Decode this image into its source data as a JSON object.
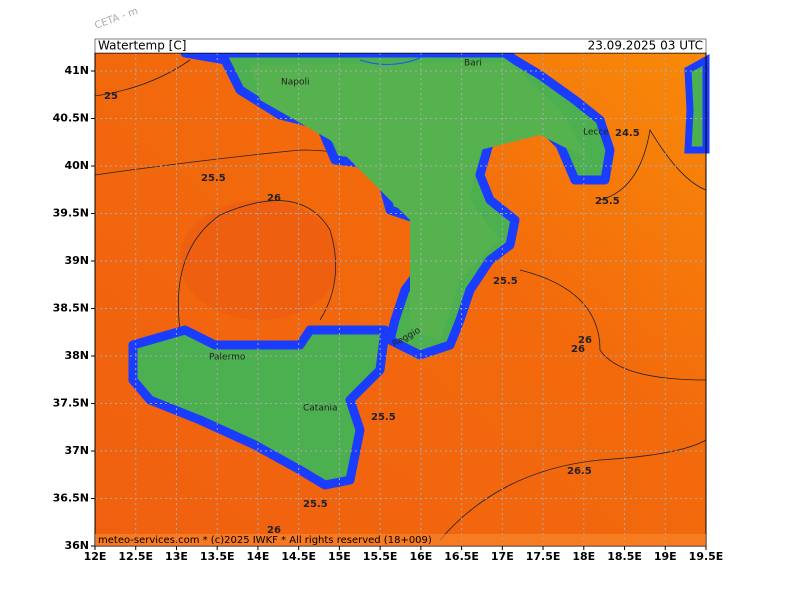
{
  "header": {
    "title": "Watertemp [C]",
    "run": "23.09.2025 03 UTC",
    "model": "CETA - m"
  },
  "footer": "meteo-services.com * (c)2025 IWKF * All rights reserved (18+009)",
  "lat_labels": [
    "36N",
    "36.5N",
    "37N",
    "37.5N",
    "38N",
    "38.5N",
    "39N",
    "39.5N",
    "40N",
    "40.5N",
    "41N"
  ],
  "lon_labels": [
    "12E",
    "12.5E",
    "13E",
    "13.5E",
    "14E",
    "14.5E",
    "15E",
    "15.5E",
    "16E",
    "16.5E",
    "17E",
    "17.5E",
    "18E",
    "18.5E",
    "19E",
    "19.5E"
  ],
  "cities": [
    "Napoli",
    "Bari",
    "Lecce",
    "Reggio",
    "Palermo",
    "Catania"
  ],
  "contour_labels": [
    "25",
    "25.5",
    "26",
    "24.5",
    "25.5",
    "25.5",
    "26",
    "26",
    "25.5",
    "26.5",
    "25.5",
    "26"
  ]
}
